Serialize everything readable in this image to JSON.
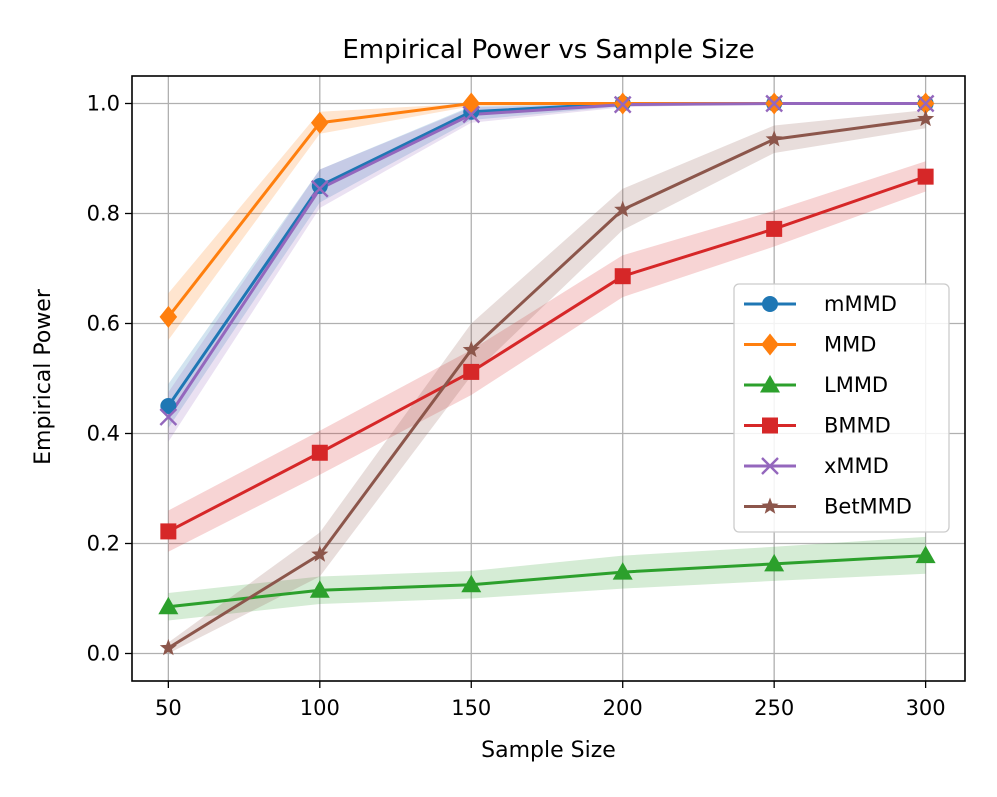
{
  "chart_data": {
    "type": "line",
    "title": "Empirical Power vs Sample Size",
    "xlabel": "Sample Size",
    "ylabel": "Empirical Power",
    "xlim": [
      38,
      313
    ],
    "ylim": [
      -0.05,
      1.05
    ],
    "x_ticks": [
      "50",
      "100",
      "150",
      "200",
      "250",
      "300"
    ],
    "y_ticks": [
      "0.0",
      "0.2",
      "0.4",
      "0.6",
      "0.8",
      "1.0"
    ],
    "x_tick_values": [
      50,
      100,
      150,
      200,
      250,
      300
    ],
    "y_tick_values": [
      0.0,
      0.2,
      0.4,
      0.6,
      0.8,
      1.0
    ],
    "grid": true,
    "legend_position": "center-right",
    "x": [
      50,
      100,
      150,
      200,
      250,
      300
    ],
    "series": [
      {
        "name": "mMMD",
        "color": "#1f77b4",
        "marker": "circle",
        "values": [
          0.45,
          0.85,
          0.985,
          1.0,
          1.0,
          1.0
        ],
        "lower": [
          0.41,
          0.82,
          0.97,
          0.995,
          1.0,
          1.0
        ],
        "upper": [
          0.49,
          0.88,
          0.995,
          1.0,
          1.0,
          1.0
        ]
      },
      {
        "name": "MMD",
        "color": "#ff7f0e",
        "marker": "diamond",
        "values": [
          0.612,
          0.965,
          1.0,
          1.0,
          1.0,
          1.0
        ],
        "lower": [
          0.57,
          0.945,
          0.995,
          1.0,
          1.0,
          1.0
        ],
        "upper": [
          0.655,
          0.985,
          1.0,
          1.0,
          1.0,
          1.0
        ]
      },
      {
        "name": "LMMD",
        "color": "#2ca02c",
        "marker": "triangle",
        "values": [
          0.085,
          0.115,
          0.125,
          0.148,
          0.163,
          0.178
        ],
        "lower": [
          0.06,
          0.09,
          0.1,
          0.118,
          0.132,
          0.145
        ],
        "upper": [
          0.11,
          0.14,
          0.15,
          0.178,
          0.194,
          0.212
        ]
      },
      {
        "name": "BMMD",
        "color": "#d62728",
        "marker": "square",
        "values": [
          0.222,
          0.365,
          0.512,
          0.686,
          0.772,
          0.867
        ],
        "lower": [
          0.185,
          0.325,
          0.47,
          0.648,
          0.74,
          0.84
        ],
        "upper": [
          0.26,
          0.405,
          0.552,
          0.724,
          0.805,
          0.895
        ]
      },
      {
        "name": "xMMD",
        "color": "#9467bd",
        "marker": "x",
        "values": [
          0.43,
          0.845,
          0.98,
          0.998,
          1.0,
          1.0
        ],
        "lower": [
          0.385,
          0.81,
          0.965,
          0.993,
          1.0,
          1.0
        ],
        "upper": [
          0.475,
          0.88,
          0.993,
          1.0,
          1.0,
          1.0
        ]
      },
      {
        "name": "BetMMD",
        "color": "#8c564b",
        "marker": "star",
        "values": [
          0.01,
          0.18,
          0.552,
          0.807,
          0.935,
          0.972
        ],
        "lower": [
          0.0,
          0.14,
          0.505,
          0.77,
          0.91,
          0.955
        ],
        "upper": [
          0.02,
          0.22,
          0.6,
          0.845,
          0.96,
          0.988
        ]
      }
    ]
  }
}
